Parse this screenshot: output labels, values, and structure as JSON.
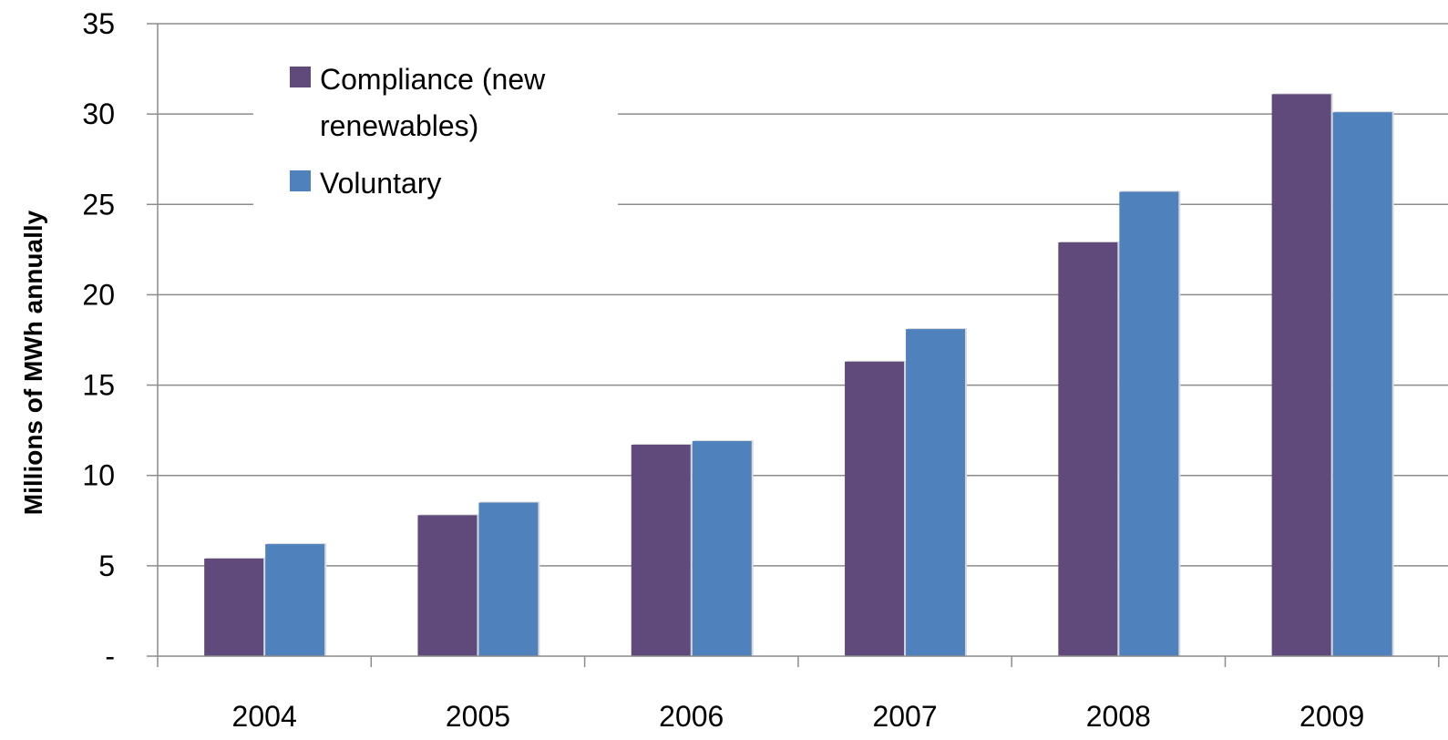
{
  "chart_data": {
    "type": "bar",
    "categories": [
      "2004",
      "2005",
      "2006",
      "2007",
      "2008",
      "2009"
    ],
    "series": [
      {
        "name": "Compliance (new renewables)",
        "legend_lines": [
          "Compliance (new",
          "renewables)"
        ],
        "color": "#604a7b",
        "values": [
          5.4,
          7.8,
          11.7,
          16.3,
          22.9,
          31.1
        ]
      },
      {
        "name": "Voluntary",
        "legend_lines": [
          "Voluntary"
        ],
        "color": "#4f81bd",
        "values": [
          6.2,
          8.5,
          11.9,
          18.1,
          25.7,
          30.1
        ]
      }
    ],
    "ylabel": "Millions of MWh annually",
    "xlabel": "",
    "ylim": [
      0,
      35
    ],
    "yticks": [
      {
        "value": 0,
        "label": "-"
      },
      {
        "value": 5,
        "label": "5"
      },
      {
        "value": 10,
        "label": "10"
      },
      {
        "value": 15,
        "label": "15"
      },
      {
        "value": 20,
        "label": "20"
      },
      {
        "value": 25,
        "label": "25"
      },
      {
        "value": 30,
        "label": "30"
      },
      {
        "value": 35,
        "label": "35"
      }
    ],
    "grid": true,
    "legend_position": "top-left",
    "gridline_color": "#8c8c8c",
    "axis_color": "#8c8c8c"
  }
}
